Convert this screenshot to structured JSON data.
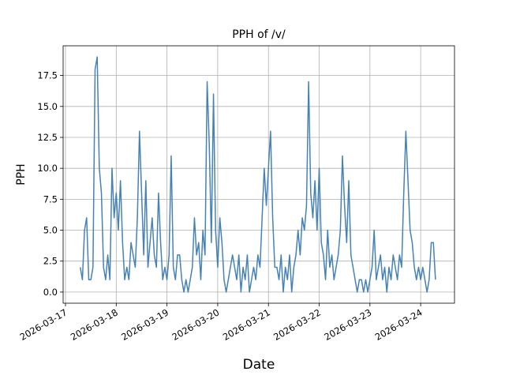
{
  "chart_data": {
    "type": "line",
    "title": "PPH of /v/",
    "xlabel": "Date",
    "ylabel": "PPH",
    "x": [
      "2026-03-17 07:00",
      "2026-03-17 08:00",
      "2026-03-17 09:00",
      "2026-03-17 10:00",
      "2026-03-17 11:00",
      "2026-03-17 12:00",
      "2026-03-17 13:00",
      "2026-03-17 14:00",
      "2026-03-17 15:00",
      "2026-03-17 16:00",
      "2026-03-17 17:00",
      "2026-03-17 18:00",
      "2026-03-17 19:00",
      "2026-03-17 20:00",
      "2026-03-17 21:00",
      "2026-03-17 22:00",
      "2026-03-17 23:00",
      "2026-03-18 00:00",
      "2026-03-18 01:00",
      "2026-03-18 02:00",
      "2026-03-18 03:00",
      "2026-03-18 04:00",
      "2026-03-18 05:00",
      "2026-03-18 06:00",
      "2026-03-18 07:00",
      "2026-03-18 08:00",
      "2026-03-18 09:00",
      "2026-03-18 10:00",
      "2026-03-18 11:00",
      "2026-03-18 12:00",
      "2026-03-18 13:00",
      "2026-03-18 14:00",
      "2026-03-18 15:00",
      "2026-03-18 16:00",
      "2026-03-18 17:00",
      "2026-03-18 18:00",
      "2026-03-18 19:00",
      "2026-03-18 20:00",
      "2026-03-18 21:00",
      "2026-03-18 22:00",
      "2026-03-18 23:00",
      "2026-03-19 00:00",
      "2026-03-19 01:00",
      "2026-03-19 02:00",
      "2026-03-19 03:00",
      "2026-03-19 04:00",
      "2026-03-19 05:00",
      "2026-03-19 06:00",
      "2026-03-19 07:00",
      "2026-03-19 08:00",
      "2026-03-19 09:00",
      "2026-03-19 10:00",
      "2026-03-19 11:00",
      "2026-03-19 12:00",
      "2026-03-19 13:00",
      "2026-03-19 14:00",
      "2026-03-19 15:00",
      "2026-03-19 16:00",
      "2026-03-19 17:00",
      "2026-03-19 18:00",
      "2026-03-19 19:00",
      "2026-03-19 20:00",
      "2026-03-19 21:00",
      "2026-03-19 22:00",
      "2026-03-19 23:00",
      "2026-03-20 00:00",
      "2026-03-20 01:00",
      "2026-03-20 02:00",
      "2026-03-20 03:00",
      "2026-03-20 04:00",
      "2026-03-20 05:00",
      "2026-03-20 06:00",
      "2026-03-20 07:00",
      "2026-03-20 08:00",
      "2026-03-20 09:00",
      "2026-03-20 10:00",
      "2026-03-20 11:00",
      "2026-03-20 12:00",
      "2026-03-20 13:00",
      "2026-03-20 14:00",
      "2026-03-20 15:00",
      "2026-03-20 16:00",
      "2026-03-20 17:00",
      "2026-03-20 18:00",
      "2026-03-20 19:00",
      "2026-03-20 20:00",
      "2026-03-20 21:00",
      "2026-03-20 22:00",
      "2026-03-20 23:00",
      "2026-03-21 00:00",
      "2026-03-21 01:00",
      "2026-03-21 02:00",
      "2026-03-21 03:00",
      "2026-03-21 04:00",
      "2026-03-21 05:00",
      "2026-03-21 06:00",
      "2026-03-21 07:00",
      "2026-03-21 08:00",
      "2026-03-21 09:00",
      "2026-03-21 10:00",
      "2026-03-21 11:00",
      "2026-03-21 12:00",
      "2026-03-21 13:00",
      "2026-03-21 14:00",
      "2026-03-21 15:00",
      "2026-03-21 16:00",
      "2026-03-21 17:00",
      "2026-03-21 18:00",
      "2026-03-21 19:00",
      "2026-03-21 20:00",
      "2026-03-21 21:00",
      "2026-03-21 22:00",
      "2026-03-21 23:00",
      "2026-03-22 00:00",
      "2026-03-22 01:00",
      "2026-03-22 02:00",
      "2026-03-22 03:00",
      "2026-03-22 04:00",
      "2026-03-22 05:00",
      "2026-03-22 06:00",
      "2026-03-22 07:00",
      "2026-03-22 08:00",
      "2026-03-22 09:00",
      "2026-03-22 10:00",
      "2026-03-22 11:00",
      "2026-03-22 12:00",
      "2026-03-22 13:00",
      "2026-03-22 14:00",
      "2026-03-22 15:00",
      "2026-03-22 16:00",
      "2026-03-22 17:00",
      "2026-03-22 18:00",
      "2026-03-22 19:00",
      "2026-03-22 20:00",
      "2026-03-22 21:00",
      "2026-03-22 22:00",
      "2026-03-22 23:00",
      "2026-03-23 00:00",
      "2026-03-23 01:00",
      "2026-03-23 02:00",
      "2026-03-23 03:00",
      "2026-03-23 04:00",
      "2026-03-23 05:00",
      "2026-03-23 06:00",
      "2026-03-23 07:00",
      "2026-03-23 08:00",
      "2026-03-23 09:00",
      "2026-03-23 10:00",
      "2026-03-23 11:00",
      "2026-03-23 12:00",
      "2026-03-23 13:00",
      "2026-03-23 14:00",
      "2026-03-23 15:00",
      "2026-03-23 16:00",
      "2026-03-23 17:00",
      "2026-03-23 18:00",
      "2026-03-23 19:00",
      "2026-03-23 20:00",
      "2026-03-23 21:00",
      "2026-03-23 22:00",
      "2026-03-23 23:00",
      "2026-03-24 00:00",
      "2026-03-24 01:00",
      "2026-03-24 02:00",
      "2026-03-24 03:00",
      "2026-03-24 04:00",
      "2026-03-24 05:00",
      "2026-03-24 06:00",
      "2026-03-24 07:00"
    ],
    "series": [
      {
        "color": "#4682b4",
        "values": [
          2,
          1,
          5,
          6,
          1,
          1,
          2,
          18,
          19,
          10,
          8,
          2,
          1,
          3,
          1,
          10,
          6,
          8,
          5,
          9,
          4,
          1,
          2,
          1,
          4,
          3,
          2,
          6,
          13,
          8,
          3,
          9,
          2,
          4,
          6,
          3,
          2,
          8,
          4,
          1,
          2,
          1,
          3,
          11,
          2,
          1,
          3,
          3,
          1,
          0,
          1,
          0,
          1,
          2,
          6,
          3,
          4,
          1,
          5,
          3,
          17,
          12,
          4,
          16,
          5,
          2,
          6,
          4,
          1,
          0,
          1,
          2,
          3,
          2,
          1,
          3,
          0,
          2,
          1,
          3,
          0,
          1,
          2,
          1,
          3,
          2,
          6,
          10,
          7,
          10,
          13,
          6,
          2,
          2,
          1,
          3,
          0,
          2,
          1,
          3,
          0,
          2,
          3,
          5,
          3,
          6,
          5,
          7,
          17,
          8,
          6,
          9,
          5,
          10,
          4,
          3,
          1,
          5,
          2,
          3,
          1,
          2,
          3,
          5,
          11,
          7,
          4,
          9,
          3,
          2,
          1,
          0,
          1,
          1,
          0,
          1,
          0,
          1,
          2,
          5,
          1,
          2,
          3,
          1,
          2,
          0,
          2,
          1,
          3,
          2,
          1,
          3,
          2,
          8,
          13,
          9,
          5,
          4,
          2,
          1,
          2,
          1,
          2,
          1,
          0,
          1,
          4,
          4,
          1
        ]
      }
    ],
    "xlim": [
      "2026-03-16 22:53",
      "2026-03-24 16:00"
    ],
    "xticks": [
      "2026-03-17",
      "2026-03-18",
      "2026-03-19",
      "2026-03-20",
      "2026-03-21",
      "2026-03-22",
      "2026-03-23",
      "2026-03-24"
    ],
    "ylim": [
      -0.9,
      19.9
    ],
    "yticks": [
      {
        "value": 0,
        "label": "0.0"
      },
      2.5,
      {
        "value": 5,
        "label": "5.0"
      },
      7.5,
      {
        "value": 10,
        "label": "10.0"
      },
      12.5,
      {
        "value": 15,
        "label": "15.0"
      },
      17.5
    ],
    "grid": true
  }
}
